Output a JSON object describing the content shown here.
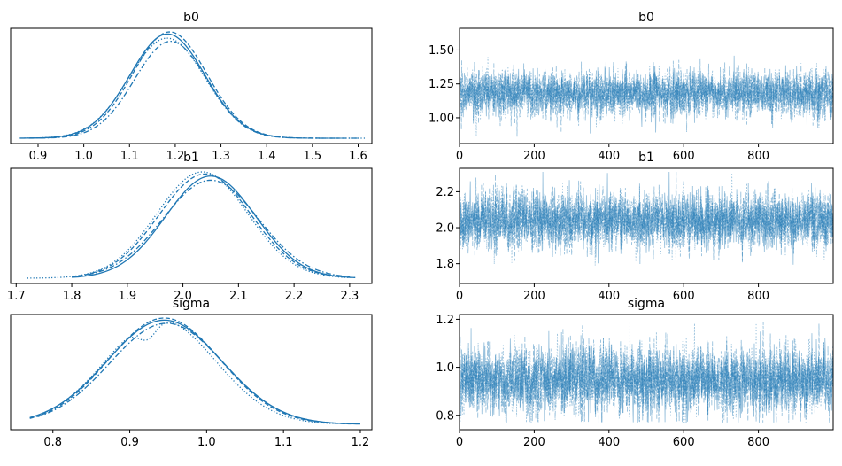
{
  "series_color": "#1f77b4",
  "chart_data": [
    {
      "type": "area",
      "panel": "density",
      "title": "b0",
      "xlim": [
        0.84,
        1.63
      ],
      "xticks": [
        0.9,
        1.0,
        1.1,
        1.2,
        1.3,
        1.4,
        1.5,
        1.6
      ],
      "xticklabels": [
        "0.9",
        "1.0",
        "1.1",
        "1.2",
        "1.3",
        "1.4",
        "1.5",
        "1.6"
      ],
      "chains": [
        {
          "mean": 1.183,
          "sd": 0.082,
          "range": [
            0.86,
            1.42
          ],
          "style": "solid",
          "peak": 1.0
        },
        {
          "mean": 1.182,
          "sd": 0.083,
          "range": [
            0.87,
            1.62
          ],
          "style": "dotted",
          "peak": 0.96
        },
        {
          "mean": 1.188,
          "sd": 0.081,
          "range": [
            0.88,
            1.56
          ],
          "style": "dashed",
          "peak": 1.02
        },
        {
          "mean": 1.19,
          "sd": 0.079,
          "range": [
            0.88,
            1.6
          ],
          "style": "dashdot",
          "peak": 0.93
        }
      ]
    },
    {
      "type": "line",
      "panel": "trace",
      "title": "b0",
      "xlim": [
        0,
        1000
      ],
      "ylim": [
        0.81,
        1.66
      ],
      "xticks": [
        0,
        200,
        400,
        600,
        800
      ],
      "yticks": [
        1.0,
        1.25,
        1.5
      ],
      "yticklabels": [
        "1.00",
        "1.25",
        "1.50"
      ],
      "mean": 1.18,
      "sd": 0.085,
      "draws": 1000,
      "chains": 4,
      "observed_max": 1.62,
      "observed_min": 0.86
    },
    {
      "type": "area",
      "panel": "density",
      "title": "b1",
      "xlim": [
        1.69,
        2.34
      ],
      "xticks": [
        1.7,
        1.8,
        1.9,
        2.0,
        2.1,
        2.2,
        2.3
      ],
      "xticklabels": [
        "1.7",
        "1.8",
        "1.9",
        "2.0",
        "2.1",
        "2.2",
        "2.3"
      ],
      "chains": [
        {
          "mean": 2.05,
          "sd": 0.081,
          "range": [
            1.8,
            2.31
          ],
          "style": "solid",
          "peak": 0.98
        },
        {
          "mean": 2.035,
          "sd": 0.082,
          "range": [
            1.72,
            2.3
          ],
          "style": "dotted",
          "peak": 1.02
        },
        {
          "mean": 2.04,
          "sd": 0.083,
          "range": [
            1.8,
            2.31
          ],
          "style": "dashed",
          "peak": 1.0
        },
        {
          "mean": 2.05,
          "sd": 0.086,
          "range": [
            1.81,
            2.3
          ],
          "style": "dashdot",
          "peak": 0.94
        }
      ]
    },
    {
      "type": "line",
      "panel": "trace",
      "title": "b1",
      "xlim": [
        0,
        1000
      ],
      "ylim": [
        1.69,
        2.33
      ],
      "xticks": [
        0,
        200,
        400,
        600,
        800
      ],
      "yticks": [
        1.8,
        2.0,
        2.2
      ],
      "yticklabels": [
        "1.8",
        "2.0",
        "2.2"
      ],
      "mean": 2.04,
      "sd": 0.08,
      "draws": 1000,
      "chains": 4,
      "observed_max": 2.31,
      "observed_min": 1.72
    },
    {
      "type": "area",
      "panel": "density",
      "title": "sigma",
      "xlim": [
        0.745,
        1.215
      ],
      "xticks": [
        0.8,
        0.9,
        1.0,
        1.1,
        1.2
      ],
      "xticklabels": [
        "0.8",
        "0.9",
        "1.0",
        "1.1",
        "1.2"
      ],
      "chains": [
        {
          "mean": 0.945,
          "sd": 0.075,
          "range": [
            0.77,
            1.2
          ],
          "style": "solid",
          "peak": 1.0
        },
        {
          "mean": 0.94,
          "sd": 0.072,
          "range": [
            0.77,
            1.17
          ],
          "style": "dotted",
          "peak": 1.0,
          "dip": {
            "at": 0.923,
            "width": 0.012,
            "depth": 0.16
          }
        },
        {
          "mean": 0.945,
          "sd": 0.073,
          "range": [
            0.77,
            1.19
          ],
          "style": "dashed",
          "peak": 1.02
        },
        {
          "mean": 0.948,
          "sd": 0.074,
          "range": [
            0.78,
            1.19
          ],
          "style": "dashdot",
          "peak": 0.97
        }
      ]
    },
    {
      "type": "line",
      "panel": "trace",
      "title": "sigma",
      "xlim": [
        0,
        1000
      ],
      "ylim": [
        0.74,
        1.22
      ],
      "xticks": [
        0,
        200,
        400,
        600,
        800
      ],
      "yticks": [
        0.8,
        1.0,
        1.2
      ],
      "yticklabels": [
        "0.8",
        "1.0",
        "1.2"
      ],
      "mean": 0.945,
      "sd": 0.072,
      "draws": 1000,
      "chains": 4,
      "observed_max": 1.19,
      "observed_min": 0.77
    }
  ]
}
